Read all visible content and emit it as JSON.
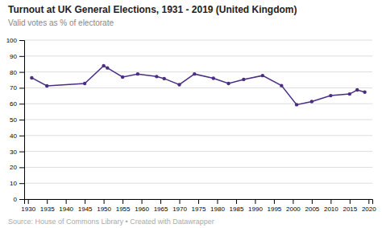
{
  "chart_data": {
    "type": "line",
    "title": "Turnout at UK General Elections, 1931 - 2019 (United Kingdom)",
    "subtitle": "Valid votes as % of electorate",
    "source": "Source: House of Commons Library • Created with Datawrapper",
    "x": [
      1931,
      1935,
      1945,
      1950,
      1951,
      1955,
      1959,
      1964,
      1966,
      1970,
      1974,
      1979,
      1983,
      1987,
      1992,
      1997,
      2001,
      2005,
      2010,
      2015,
      2017,
      2019
    ],
    "values": [
      76.3,
      71.2,
      72.7,
      83.9,
      82.5,
      76.8,
      78.7,
      77.1,
      75.8,
      72.0,
      78.7,
      76.0,
      72.7,
      75.3,
      77.7,
      71.4,
      59.4,
      61.4,
      65.1,
      66.1,
      68.7,
      67.3
    ],
    "color": "#4b2e83",
    "marker": "circle",
    "xlim": [
      1929,
      2021
    ],
    "xticks": [
      1930,
      1935,
      1940,
      1945,
      1950,
      1955,
      1960,
      1965,
      1970,
      1975,
      1980,
      1985,
      1990,
      1995,
      2000,
      2005,
      2010,
      2015,
      2020
    ],
    "ylim": [
      0,
      100
    ],
    "yticks": [
      0,
      10,
      20,
      30,
      40,
      50,
      60,
      70,
      80,
      90,
      100
    ],
    "grid": "y"
  }
}
